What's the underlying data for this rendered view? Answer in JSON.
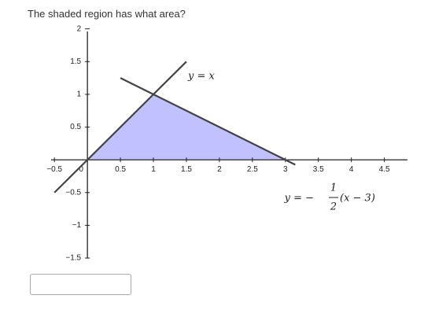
{
  "question": "The shaded region has what area?",
  "chart_data": {
    "type": "line",
    "xlim": [
      -0.55,
      4.85
    ],
    "ylim": [
      -1.5,
      1.96
    ],
    "xticks": [
      {
        "value": -0.5,
        "label": "−0.5"
      },
      0,
      0.5,
      1,
      1.5,
      2,
      2.5,
      3,
      3.5,
      4,
      4.5
    ],
    "yticks": [
      {
        "value": -1.5,
        "label": "−1.5"
      },
      {
        "value": -1,
        "label": "−1"
      },
      {
        "value": -0.5,
        "label": "−0.5"
      },
      0.5,
      1,
      1.5,
      2
    ],
    "series": [
      {
        "color": "#444444",
        "x": [
          -0.5,
          1.5
        ],
        "values": [
          -0.5,
          1.5
        ]
      },
      {
        "color": "#444444",
        "x": [
          0.5,
          3.15
        ],
        "values": [
          1.25,
          -0.075
        ]
      }
    ],
    "shaded_region": {
      "color": "#babaff",
      "x": [
        0,
        1,
        3
      ],
      "values": [
        0,
        1,
        0
      ]
    },
    "annotations": [
      "y = x",
      "y = −",
      "1",
      "2",
      "(x − 3)"
    ]
  }
}
